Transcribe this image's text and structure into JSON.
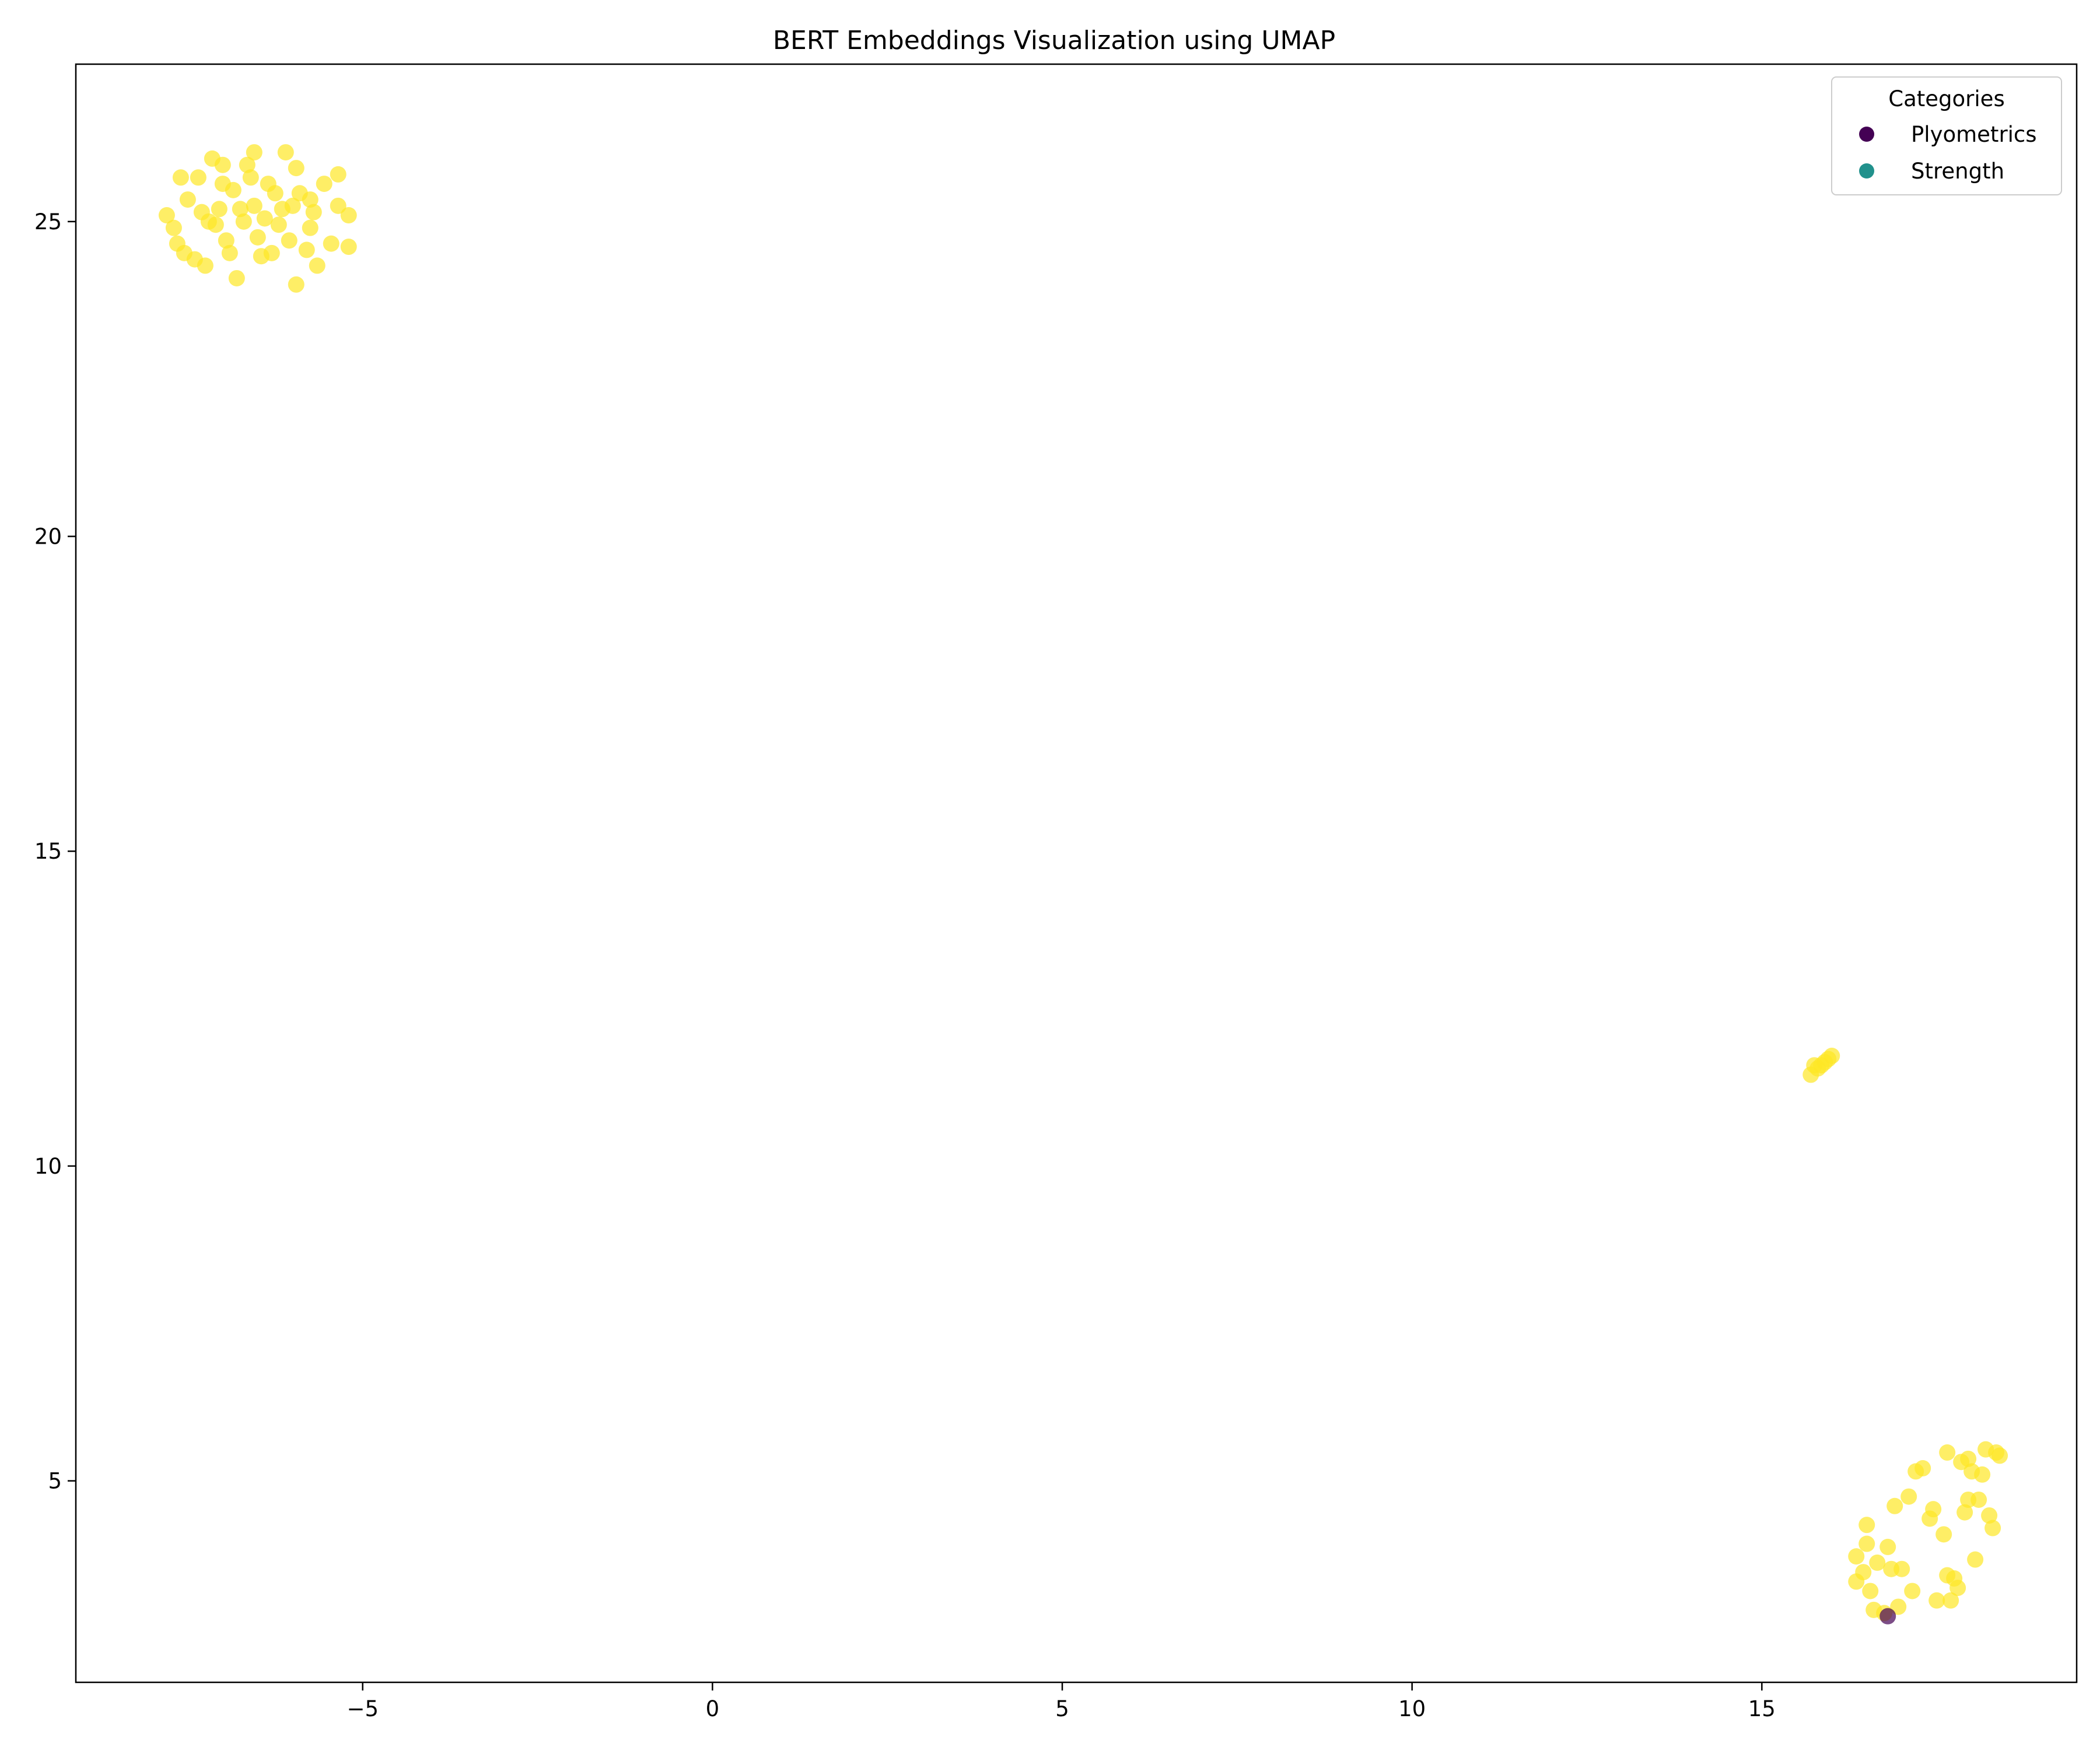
{
  "chart_data": {
    "type": "scatter",
    "title": "BERT Embeddings Visualization using UMAP",
    "xlabel": "",
    "ylabel": "",
    "xlim": [
      -9.1,
      19.5
    ],
    "ylim": [
      1.8,
      27.5
    ],
    "xticks": [
      -5,
      0,
      5,
      10,
      15
    ],
    "yticks": [
      5,
      10,
      15,
      20,
      25
    ],
    "xtick_labels": [
      "−5",
      "0",
      "5",
      "10",
      "15"
    ],
    "ytick_labels": [
      "5",
      "10",
      "15",
      "20",
      "25"
    ],
    "grid": false,
    "legend": {
      "title": "Categories",
      "position": "top-right",
      "entries": [
        {
          "label": "Plyometrics",
          "color": "#440154"
        },
        {
          "label": "Strength",
          "color": "#21918c"
        }
      ]
    },
    "series": [
      {
        "color": "#fde725",
        "points": [
          [
            -7.8,
            25.1
          ],
          [
            -7.7,
            24.9
          ],
          [
            -7.65,
            24.65
          ],
          [
            -7.6,
            25.7
          ],
          [
            -7.55,
            24.5
          ],
          [
            -7.5,
            25.35
          ],
          [
            -7.4,
            24.4
          ],
          [
            -7.35,
            25.7
          ],
          [
            -7.3,
            25.15
          ],
          [
            -7.25,
            24.3
          ],
          [
            -7.2,
            25.0
          ],
          [
            -7.15,
            26.0
          ],
          [
            -7.1,
            24.95
          ],
          [
            -7.05,
            25.2
          ],
          [
            -7.0,
            25.9
          ],
          [
            -7.0,
            25.6
          ],
          [
            -6.95,
            24.7
          ],
          [
            -6.9,
            24.5
          ],
          [
            -6.85,
            25.5
          ],
          [
            -6.8,
            24.1
          ],
          [
            -6.75,
            25.2
          ],
          [
            -6.7,
            25.0
          ],
          [
            -6.65,
            25.9
          ],
          [
            -6.6,
            25.7
          ],
          [
            -6.55,
            26.1
          ],
          [
            -6.55,
            25.25
          ],
          [
            -6.5,
            24.75
          ],
          [
            -6.45,
            24.45
          ],
          [
            -6.4,
            25.05
          ],
          [
            -6.35,
            25.6
          ],
          [
            -6.3,
            24.5
          ],
          [
            -6.25,
            25.45
          ],
          [
            -6.2,
            24.95
          ],
          [
            -6.15,
            25.2
          ],
          [
            -6.1,
            26.1
          ],
          [
            -6.05,
            24.7
          ],
          [
            -6.0,
            25.25
          ],
          [
            -5.95,
            25.85
          ],
          [
            -5.95,
            24.0
          ],
          [
            -5.9,
            25.45
          ],
          [
            -5.8,
            24.55
          ],
          [
            -5.75,
            25.35
          ],
          [
            -5.75,
            24.9
          ],
          [
            -5.7,
            25.15
          ],
          [
            -5.65,
            24.3
          ],
          [
            -5.55,
            25.6
          ],
          [
            -5.45,
            24.65
          ],
          [
            -5.35,
            25.75
          ],
          [
            -5.35,
            25.25
          ],
          [
            -5.2,
            25.1
          ],
          [
            -5.2,
            24.6
          ],
          [
            15.7,
            11.45
          ],
          [
            15.75,
            11.6
          ],
          [
            15.8,
            11.55
          ],
          [
            15.85,
            11.6
          ],
          [
            15.9,
            11.65
          ],
          [
            15.95,
            11.7
          ],
          [
            16.0,
            11.75
          ],
          [
            16.35,
            3.8
          ],
          [
            16.35,
            3.4
          ],
          [
            16.45,
            3.55
          ],
          [
            16.5,
            4.0
          ],
          [
            16.5,
            4.3
          ],
          [
            16.55,
            3.25
          ],
          [
            16.6,
            2.95
          ],
          [
            16.65,
            3.7
          ],
          [
            16.75,
            2.9
          ],
          [
            16.8,
            3.95
          ],
          [
            16.85,
            3.6
          ],
          [
            16.9,
            4.6
          ],
          [
            16.95,
            3.0
          ],
          [
            17.0,
            3.6
          ],
          [
            17.1,
            4.75
          ],
          [
            17.15,
            3.25
          ],
          [
            17.2,
            5.15
          ],
          [
            17.3,
            5.2
          ],
          [
            17.4,
            4.4
          ],
          [
            17.45,
            4.55
          ],
          [
            17.5,
            3.1
          ],
          [
            17.6,
            4.15
          ],
          [
            17.65,
            3.5
          ],
          [
            17.65,
            5.45
          ],
          [
            17.7,
            3.1
          ],
          [
            17.75,
            3.45
          ],
          [
            17.8,
            3.3
          ],
          [
            17.85,
            5.3
          ],
          [
            17.9,
            4.5
          ],
          [
            17.95,
            4.7
          ],
          [
            17.95,
            5.35
          ],
          [
            18.0,
            5.15
          ],
          [
            18.05,
            3.75
          ],
          [
            18.1,
            4.7
          ],
          [
            18.15,
            5.1
          ],
          [
            18.2,
            5.5
          ],
          [
            18.25,
            4.45
          ],
          [
            18.3,
            4.25
          ],
          [
            18.35,
            5.45
          ],
          [
            18.4,
            5.4
          ]
        ]
      },
      {
        "name": "Plyometrics",
        "color": "#440154",
        "points": [
          [
            16.8,
            2.85
          ]
        ]
      }
    ]
  }
}
